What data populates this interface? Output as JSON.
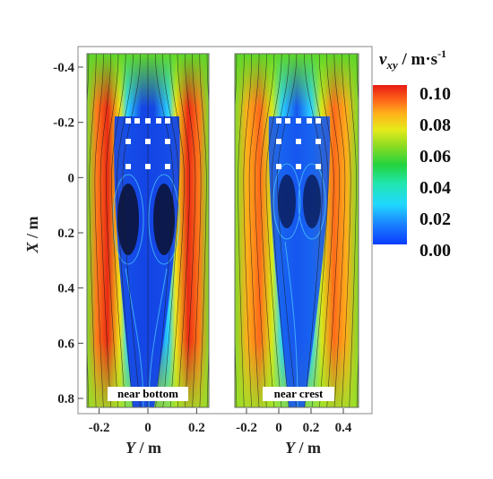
{
  "chart_data": {
    "type": "heatmap",
    "quantity": "v_xy",
    "colorbar": {
      "title_var": "v",
      "title_sub": "xy",
      "title_unit": " / m·s",
      "title_exp": "-1",
      "ticks": [
        "0.10",
        "0.08",
        "0.06",
        "0.04",
        "0.02",
        "0.00"
      ],
      "range": [
        0.0,
        0.1
      ]
    },
    "y_axis": {
      "label_var": "X",
      "label_unit": " / m",
      "ticks": [
        "-0.4",
        "-0.2",
        "0",
        "0.2",
        "0.4",
        "0.6",
        "0.8"
      ],
      "range": [
        -0.45,
        0.85
      ]
    },
    "panels": [
      {
        "label": "near bottom",
        "x_axis": {
          "label_var": "Y",
          "label_unit": " / m",
          "ticks": [
            "-0.2",
            "0",
            "0.2"
          ],
          "range": [
            -0.25,
            0.25
          ]
        }
      },
      {
        "label": "near crest",
        "x_axis": {
          "label_var": "Y",
          "label_unit": " / m",
          "ticks": [
            "-0.2",
            "0",
            "0.2",
            "0.4"
          ],
          "range": [
            -0.25,
            0.55
          ]
        }
      }
    ]
  }
}
